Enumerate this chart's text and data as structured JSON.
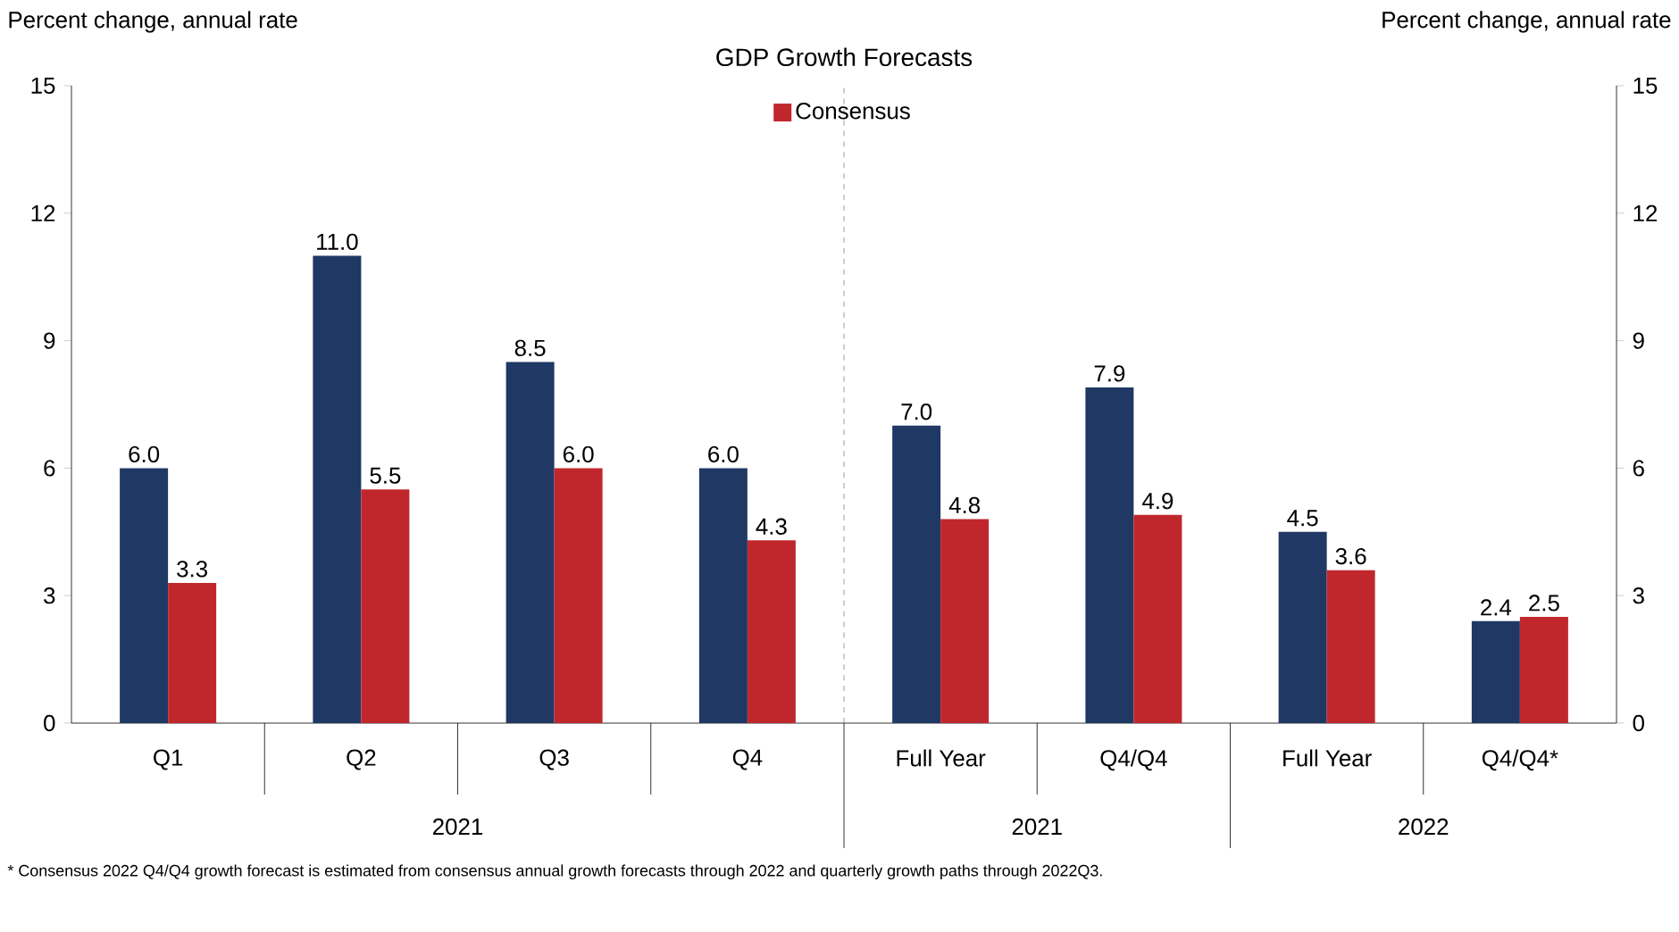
{
  "chart_data": {
    "type": "bar",
    "title": "GDP Growth Forecasts",
    "categories": [
      "Q1",
      "Q2",
      "Q3",
      "Q4",
      "Full Year",
      "Q4/Q4",
      "Full Year",
      "Q4/Q4*"
    ],
    "series": [
      {
        "color": "#1f3864",
        "values": [
          6,
          11,
          8.5,
          6,
          7,
          7.9,
          4.5,
          2.4
        ],
        "value_labels": [
          "6.0",
          "11.0",
          "8.5",
          "6.0",
          "7.0",
          "7.9",
          "4.5",
          "2.4"
        ]
      },
      {
        "name": "Consensus",
        "color": "#c0272d",
        "values": [
          3.3,
          5.5,
          6,
          4.3,
          4.8,
          4.9,
          3.6,
          2.5
        ],
        "value_labels": [
          "3.3",
          "5.5",
          "6.0",
          "4.3",
          "4.8",
          "4.9",
          "3.6",
          "2.5"
        ]
      }
    ],
    "ylim": [
      0,
      15
    ],
    "yticks": [
      0,
      3,
      6,
      9,
      12,
      15
    ],
    "y2lim": [
      0,
      15
    ],
    "y2ticks": [
      0,
      3,
      6,
      9,
      12,
      15
    ],
    "legend": "top",
    "annotations": [
      "2021",
      "2021",
      "2022",
      "* Consensus 2022 Q4/Q4 growth forecast is estimated from consensus annual growth forecasts through 2022 and quarterly growth paths through 2022Q3.",
      "Percent change, annual rate",
      "Percent change, annual rate"
    ]
  }
}
